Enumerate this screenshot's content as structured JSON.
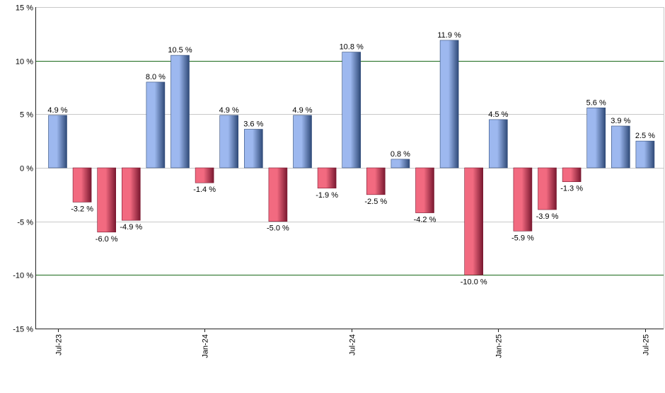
{
  "chart_data": {
    "type": "bar",
    "title": "",
    "xlabel": "",
    "ylabel": "",
    "ylim": [
      -15,
      15
    ],
    "yticks": [
      15,
      10,
      5,
      0,
      -5,
      -10,
      -15
    ],
    "ytick_labels": [
      "15 %",
      "10 %",
      "5 %",
      "0 %",
      "-5 %",
      "-10 %",
      "-15 %"
    ],
    "x_tick_labels": [
      {
        "label": "Jul-23",
        "index": 0
      },
      {
        "label": "Jan-24",
        "index": 6
      },
      {
        "label": "Jul-24",
        "index": 12
      },
      {
        "label": "Jan-25",
        "index": 18
      },
      {
        "label": "Jul-25",
        "index": 24
      }
    ],
    "values": [
      4.9,
      -3.2,
      -6.0,
      -4.9,
      8.0,
      10.5,
      -1.4,
      4.9,
      3.6,
      -5.0,
      4.9,
      -1.9,
      10.8,
      -2.5,
      0.8,
      -4.2,
      11.9,
      -10.0,
      4.5,
      -5.9,
      -3.9,
      -1.3,
      5.6,
      3.9,
      2.5
    ],
    "data_labels": [
      "4.9 %",
      "-3.2 %",
      "-6.0 %",
      "-4.9 %",
      "8.0 %",
      "10.5 %",
      "-1.4 %",
      "4.9 %",
      "3.6 %",
      "-5.0 %",
      "4.9 %",
      "-1.9 %",
      "10.8 %",
      "-2.5 %",
      "0.8 %",
      "-4.2 %",
      "11.9 %",
      "-10.0 %",
      "4.5 %",
      "-5.9 %",
      "-3.9 %",
      "-1.3 %",
      "5.6 %",
      "3.9 %",
      "2.5 %"
    ],
    "reference_lines": [
      10,
      -10
    ],
    "grid": true,
    "legend": "none",
    "colors": {
      "positive_light": "#9db8ef",
      "positive_dark": "#2f4a78",
      "negative_light": "#f26a80",
      "negative_dark": "#7a1830",
      "reference_line": "#1a6a1a",
      "grid": "#c8c8c8",
      "axis": "#222222"
    }
  }
}
